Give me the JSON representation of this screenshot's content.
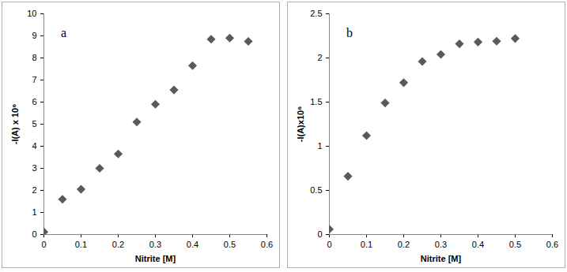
{
  "chart_data": [
    {
      "type": "scatter",
      "annotation": "a",
      "x_label": "Nitrite [M]",
      "y_label": "-I(A) x 10⁶",
      "x": [
        0,
        0.05,
        0.1,
        0.15,
        0.2,
        0.25,
        0.3,
        0.35,
        0.4,
        0.45,
        0.5,
        0.55
      ],
      "values": [
        0.12,
        1.6,
        2.05,
        3.0,
        3.65,
        5.1,
        5.9,
        6.55,
        7.65,
        8.85,
        8.9,
        8.75
      ],
      "color": "#5a5a5a",
      "marker": "diamond",
      "xlim": [
        0,
        0.6
      ],
      "xticks": [
        0,
        0.1,
        0.2,
        0.3,
        0.4,
        0.5,
        0.6
      ],
      "ylim": [
        0,
        10
      ],
      "yticks": [
        0,
        1,
        2,
        3,
        4,
        5,
        6,
        7,
        8,
        9,
        10
      ],
      "grid": false
    },
    {
      "type": "scatter",
      "annotation": "b",
      "x_label": "Nitrite [M]",
      "y_label": "-I(A)x10⁶",
      "x": [
        0,
        0.05,
        0.1,
        0.15,
        0.2,
        0.25,
        0.3,
        0.35,
        0.4,
        0.45,
        0.5
      ],
      "values": [
        0.06,
        0.66,
        1.12,
        1.49,
        1.72,
        1.96,
        2.04,
        2.16,
        2.18,
        2.19,
        2.22
      ],
      "color": "#5a5a5a",
      "marker": "diamond",
      "xlim": [
        0,
        0.6
      ],
      "xticks": [
        0,
        0.1,
        0.2,
        0.3,
        0.4,
        0.5,
        0.6
      ],
      "ylim": [
        0,
        2.5
      ],
      "yticks": [
        0,
        0.5,
        1,
        1.5,
        2,
        2.5
      ],
      "grid": false
    }
  ]
}
